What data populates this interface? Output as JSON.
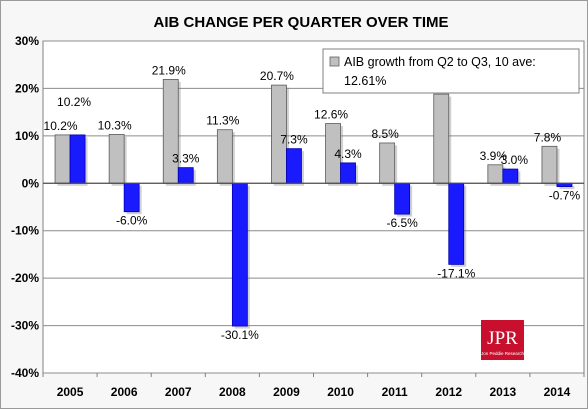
{
  "chart_data": {
    "type": "bar",
    "title": "AIB CHANGE PER QUARTER OVER TIME",
    "categories": [
      "2005",
      "2006",
      "2007",
      "2008",
      "2009",
      "2010",
      "2011",
      "2012",
      "2013",
      "2014"
    ],
    "series": [
      {
        "name": "AIB growth from Q2 to Q3, 10 ave: 12.61%",
        "color": "#c0c0c0",
        "values": [
          10.2,
          10.3,
          21.9,
          11.3,
          20.7,
          12.6,
          8.5,
          18.8,
          3.9,
          7.8
        ],
        "labels": [
          "10.2%",
          "10.3%",
          "21.9%",
          "11.3%",
          "20.7%",
          "12.6%",
          "8.5%",
          "",
          "3.9%",
          "7.8%"
        ]
      },
      {
        "color": "#1a1aff",
        "values": [
          10.2,
          -6.0,
          3.3,
          -30.1,
          7.3,
          4.3,
          -6.5,
          -17.1,
          3.0,
          -0.7
        ],
        "labels": [
          "10.2%",
          "-6.0%",
          "3.3%",
          "-30.1%",
          "7.3%",
          "4.3%",
          "-6.5%",
          "-17.1%",
          "3.0%",
          "-0.7%"
        ]
      }
    ],
    "y_ticks": [
      "30%",
      "20%",
      "10%",
      "0%",
      "-10%",
      "-20%",
      "-30%",
      "-40%"
    ],
    "ylim": [
      -40,
      30
    ],
    "grid": true,
    "legend": {
      "line1": "AIB growth from Q2 to Q3, 10 ave:",
      "line2": "12.61%",
      "position": "top-right"
    }
  },
  "logo": {
    "letters": "JPR",
    "subtitle": "Jon Peddie Research",
    "color": "#c8102e"
  }
}
